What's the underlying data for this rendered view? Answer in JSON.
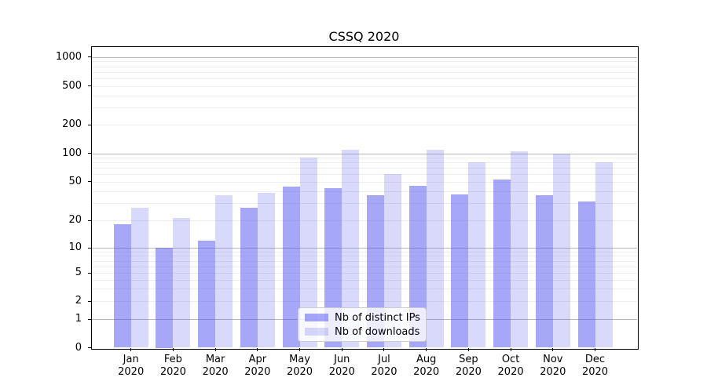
{
  "chart_data": {
    "type": "bar",
    "title": "CSSQ 2020",
    "categories": [
      [
        "Jan",
        "2020"
      ],
      [
        "Feb",
        "2020"
      ],
      [
        "Mar",
        "2020"
      ],
      [
        "Apr",
        "2020"
      ],
      [
        "May",
        "2020"
      ],
      [
        "Jun",
        "2020"
      ],
      [
        "Jul",
        "2020"
      ],
      [
        "Aug",
        "2020"
      ],
      [
        "Sep",
        "2020"
      ],
      [
        "Oct",
        "2020"
      ],
      [
        "Nov",
        "2020"
      ],
      [
        "Dec",
        "2020"
      ]
    ],
    "series": [
      {
        "name": "Nb of distinct IPs",
        "color": "rgba(80,80,240,0.5)",
        "values": [
          18,
          10,
          12,
          27,
          44,
          43,
          36,
          45,
          37,
          52,
          36,
          31
        ]
      },
      {
        "name": "Nb of downloads",
        "color": "rgba(80,80,240,0.22)",
        "values": [
          27,
          21,
          36,
          38,
          90,
          110,
          60,
          110,
          80,
          105,
          100,
          80
        ]
      }
    ],
    "xlabel": "",
    "ylabel": "",
    "y_axis": {
      "scale": "symlog",
      "ticks": [
        0,
        1,
        2,
        5,
        10,
        20,
        50,
        100,
        200,
        500,
        1000
      ],
      "ylim": [
        0,
        1300
      ],
      "grid": "both"
    },
    "legend": {
      "position": "lower center"
    }
  }
}
